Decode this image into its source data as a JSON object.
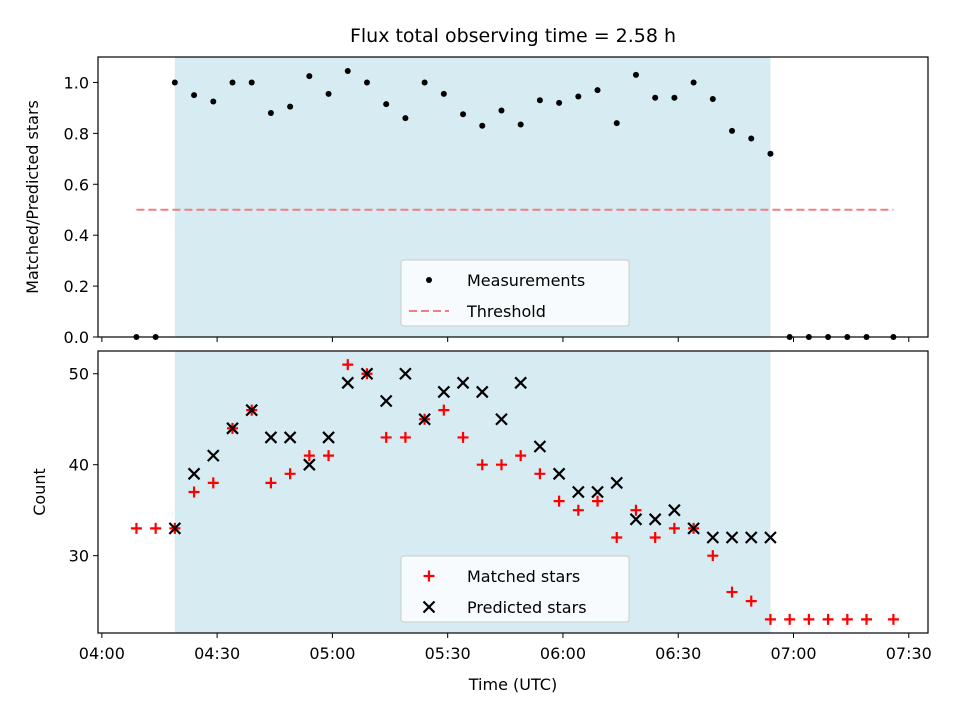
{
  "colors": {
    "shade": "#add8e6",
    "measurement": "#000000",
    "threshold": "#f08080",
    "matched": "#ff0000",
    "predicted": "#000000"
  },
  "chart_data": [
    {
      "type": "scatter",
      "title": "Flux total observing time = 2.58 h",
      "ylabel": "Matched/Predicted stars",
      "xlabel": "",
      "ylim": [
        0,
        1.1
      ],
      "xlim": [
        "03:59",
        "07:35"
      ],
      "shaded_region": [
        "04:19",
        "06:54"
      ],
      "x_ticks": [
        "04:00",
        "04:30",
        "05:00",
        "05:30",
        "06:00",
        "06:30",
        "07:00",
        "07:30"
      ],
      "y_ticks": [
        "0.0",
        "0.2",
        "0.4",
        "0.6",
        "0.8",
        "1.0"
      ],
      "legend": {
        "position": "lower center",
        "items": [
          "Measurements",
          "Threshold"
        ]
      },
      "series": [
        {
          "name": "Measurements",
          "marker": "dot",
          "points": [
            [
              "04:09",
              0.0
            ],
            [
              "04:14",
              0.0
            ],
            [
              "04:19",
              1.0
            ],
            [
              "04:24",
              0.95
            ],
            [
              "04:29",
              0.925
            ],
            [
              "04:34",
              1.0
            ],
            [
              "04:39",
              1.0
            ],
            [
              "04:44",
              0.88
            ],
            [
              "04:49",
              0.905
            ],
            [
              "04:54",
              1.025
            ],
            [
              "04:59",
              0.955
            ],
            [
              "05:04",
              1.045
            ],
            [
              "05:09",
              1.0
            ],
            [
              "05:14",
              0.915
            ],
            [
              "05:19",
              0.86
            ],
            [
              "05:24",
              1.0
            ],
            [
              "05:29",
              0.955
            ],
            [
              "05:34",
              0.875
            ],
            [
              "05:39",
              0.83
            ],
            [
              "05:44",
              0.89
            ],
            [
              "05:49",
              0.835
            ],
            [
              "05:54",
              0.93
            ],
            [
              "05:59",
              0.92
            ],
            [
              "06:04",
              0.945
            ],
            [
              "06:09",
              0.97
            ],
            [
              "06:14",
              0.84
            ],
            [
              "06:19",
              1.03
            ],
            [
              "06:24",
              0.94
            ],
            [
              "06:29",
              0.94
            ],
            [
              "06:34",
              1.0
            ],
            [
              "06:39",
              0.935
            ],
            [
              "06:44",
              0.81
            ],
            [
              "06:49",
              0.78
            ],
            [
              "06:54",
              0.72
            ],
            [
              "06:59",
              0.0
            ],
            [
              "07:04",
              0.0
            ],
            [
              "07:09",
              0.0
            ],
            [
              "07:14",
              0.0
            ],
            [
              "07:19",
              0.0
            ],
            [
              "07:26",
              0.0
            ]
          ]
        },
        {
          "name": "Threshold",
          "marker": "dashed-line",
          "points": [
            [
              "04:09",
              0.5
            ],
            [
              "07:26",
              0.5
            ]
          ]
        }
      ]
    },
    {
      "type": "scatter",
      "title": "",
      "ylabel": "Count",
      "xlabel": "Time (UTC)",
      "ylim": [
        21.5,
        52.5
      ],
      "xlim": [
        "03:59",
        "07:35"
      ],
      "shaded_region": [
        "04:19",
        "06:54"
      ],
      "x_ticks": [
        "04:00",
        "04:30",
        "05:00",
        "05:30",
        "06:00",
        "06:30",
        "07:00",
        "07:30"
      ],
      "y_ticks": [
        "30",
        "40",
        "50"
      ],
      "legend": {
        "position": "lower center",
        "items": [
          "Matched stars",
          "Predicted stars"
        ]
      },
      "series": [
        {
          "name": "Matched stars",
          "marker": "plus",
          "points": [
            [
              "04:09",
              33
            ],
            [
              "04:14",
              33
            ],
            [
              "04:19",
              33
            ],
            [
              "04:24",
              37
            ],
            [
              "04:29",
              38
            ],
            [
              "04:34",
              44
            ],
            [
              "04:39",
              46
            ],
            [
              "04:44",
              38
            ],
            [
              "04:49",
              39
            ],
            [
              "04:54",
              41
            ],
            [
              "04:59",
              41
            ],
            [
              "05:04",
              51
            ],
            [
              "05:09",
              50
            ],
            [
              "05:14",
              43
            ],
            [
              "05:19",
              43
            ],
            [
              "05:24",
              45
            ],
            [
              "05:29",
              46
            ],
            [
              "05:34",
              43
            ],
            [
              "05:39",
              40
            ],
            [
              "05:44",
              40
            ],
            [
              "05:49",
              41
            ],
            [
              "05:54",
              39
            ],
            [
              "05:59",
              36
            ],
            [
              "06:04",
              35
            ],
            [
              "06:09",
              36
            ],
            [
              "06:14",
              32
            ],
            [
              "06:19",
              35
            ],
            [
              "06:24",
              32
            ],
            [
              "06:29",
              33
            ],
            [
              "06:34",
              33
            ],
            [
              "06:39",
              30
            ],
            [
              "06:44",
              26
            ],
            [
              "06:49",
              25
            ],
            [
              "06:54",
              23
            ],
            [
              "06:59",
              23
            ],
            [
              "07:04",
              23
            ],
            [
              "07:09",
              23
            ],
            [
              "07:14",
              23
            ],
            [
              "07:19",
              23
            ],
            [
              "07:26",
              23
            ]
          ]
        },
        {
          "name": "Predicted stars",
          "marker": "x",
          "points": [
            [
              "04:19",
              33
            ],
            [
              "04:24",
              39
            ],
            [
              "04:29",
              41
            ],
            [
              "04:34",
              44
            ],
            [
              "04:39",
              46
            ],
            [
              "04:44",
              43
            ],
            [
              "04:49",
              43
            ],
            [
              "04:54",
              40
            ],
            [
              "04:59",
              43
            ],
            [
              "05:04",
              49
            ],
            [
              "05:09",
              50
            ],
            [
              "05:14",
              47
            ],
            [
              "05:19",
              50
            ],
            [
              "05:24",
              45
            ],
            [
              "05:29",
              48
            ],
            [
              "05:34",
              49
            ],
            [
              "05:39",
              48
            ],
            [
              "05:44",
              45
            ],
            [
              "05:49",
              49
            ],
            [
              "05:54",
              42
            ],
            [
              "05:59",
              39
            ],
            [
              "06:04",
              37
            ],
            [
              "06:09",
              37
            ],
            [
              "06:14",
              38
            ],
            [
              "06:19",
              34
            ],
            [
              "06:24",
              34
            ],
            [
              "06:29",
              35
            ],
            [
              "06:34",
              33
            ],
            [
              "06:39",
              32
            ],
            [
              "06:44",
              32
            ],
            [
              "06:49",
              32
            ],
            [
              "06:54",
              32
            ]
          ]
        }
      ]
    }
  ]
}
